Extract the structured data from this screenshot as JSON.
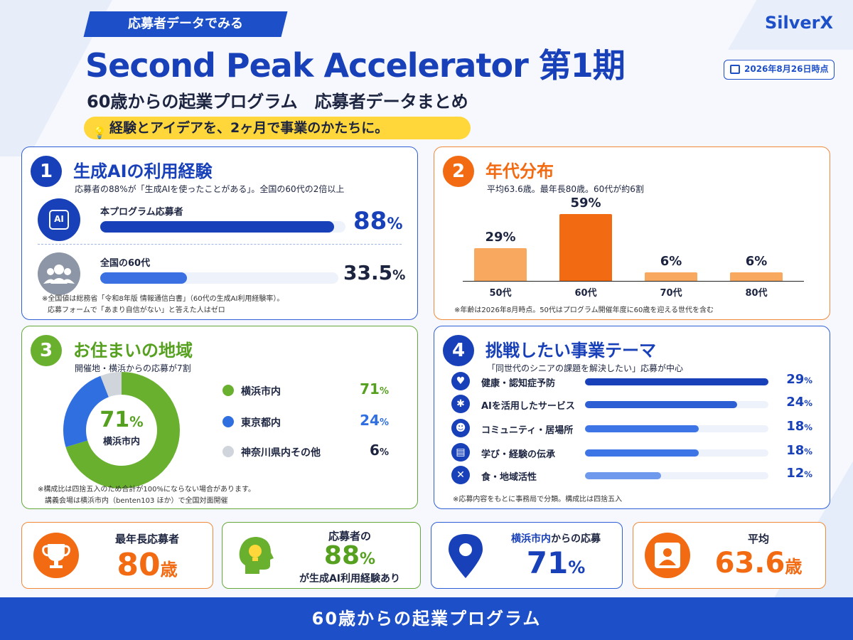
{
  "header": {
    "tag": "応募者データでみる",
    "logo": "SilverX",
    "title": "Second Peak Accelerator 第1期",
    "date": "2026年8月26日時点",
    "subtitle": "60歳からの起業プログラム　応募者データまとめ",
    "catch": "経験とアイデアを、2ヶ月で事業のかたちに。"
  },
  "section1": {
    "number": "1",
    "title": "生成AIの利用経験",
    "sub": "応募者の88%が「生成AIを使ったことがある」。全国の60代の2倍以上",
    "icon_ai": "AI",
    "rows": [
      {
        "label": "本プログラム応募者",
        "value": "88",
        "unit": "%",
        "fraction": 0.88
      },
      {
        "label": "全国の60代",
        "value": "33.5",
        "unit": "%",
        "fraction": 0.335
      }
    ],
    "note1": "※全国値は総務省「令和8年版 情報通信白書」（60代の生成AI利用経験率）。",
    "note2": "応募フォームで「あまり自信がない」と答えた人はゼロ"
  },
  "section2": {
    "number": "2",
    "title": "年代分布",
    "sub": "平均63.6歳。最年長80歳。60代が約6割",
    "note": "※年齢は2026年8月時点。50代はプログラム開催年度に60歳を迎える世代を含む",
    "chart_data": {
      "type": "bar",
      "categories": [
        "50代",
        "60代",
        "70代",
        "80代"
      ],
      "values": [
        29,
        59,
        6,
        6
      ],
      "value_labels": [
        "29%",
        "59%",
        "6%",
        "6%"
      ],
      "highlight": "60代",
      "colors": {
        "normal": "#f9a860",
        "highlight": "#f26a12"
      },
      "ylim": [
        0,
        60
      ]
    }
  },
  "section3": {
    "number": "3",
    "title": "お住まいの地域",
    "sub": "開催地・横浜からの応募が7割",
    "center_value": "71",
    "center_unit": "%",
    "center_label": "横浜市内",
    "legend": [
      {
        "label": "横浜市内",
        "value": "71",
        "unit": "%",
        "color": "#68b02e"
      },
      {
        "label": "東京都内",
        "value": "24",
        "unit": "%",
        "color": "#2f6fe0"
      },
      {
        "label": "神奈川県内その他",
        "value": "6",
        "unit": "%",
        "color": "#d0d4db"
      }
    ],
    "note1": "※構成比は四捨五入のため合計が100%にならない場合があります。",
    "note2": "講義会場は横浜市内（benten103 ほか）で全国対面開催"
  },
  "section4": {
    "number": "4",
    "title": "挑戦したい事業テーマ",
    "sub": "「同世代のシニアの課題を解決したい」応募が中心",
    "themes": [
      {
        "label": "健康・認知症予防",
        "value": "29",
        "unit": "%",
        "fraction": 0.29,
        "icon": "heart-icon"
      },
      {
        "label": "AIを活用したサービス",
        "value": "24",
        "unit": "%",
        "fraction": 0.24,
        "icon": "network-icon"
      },
      {
        "label": "コミュニティ・居場所",
        "value": "18",
        "unit": "%",
        "fraction": 0.18,
        "icon": "people-icon"
      },
      {
        "label": "学び・経験の伝承",
        "value": "18",
        "unit": "%",
        "fraction": 0.18,
        "icon": "book-icon"
      },
      {
        "label": "食・地域活性",
        "value": "12",
        "unit": "%",
        "fraction": 0.12,
        "icon": "fork-knife-icon"
      }
    ],
    "note": "※応募内容をもとに事務局で分類。構成比は四捨五入"
  },
  "stats": {
    "oldest_label": "最年長応募者",
    "oldest_value": "80",
    "oldest_unit": "歳",
    "ai_label_top": "応募者の",
    "ai_value": "88",
    "ai_unit": "%",
    "ai_label_bottom": "が生成AI利用経験あり",
    "yokohama_label_strong": "横浜市内",
    "yokohama_label_rest": "からの応募",
    "yokohama_value": "71",
    "yokohama_unit": "%",
    "avg_label": "平均",
    "avg_value": "63.6",
    "avg_unit": "歳"
  },
  "footer": {
    "text": "60歳からの起業プログラム"
  },
  "colors": {
    "blue": "#1d4fc8",
    "orange": "#f26a12",
    "green": "#68b02e",
    "yellow": "#ffd73a"
  }
}
